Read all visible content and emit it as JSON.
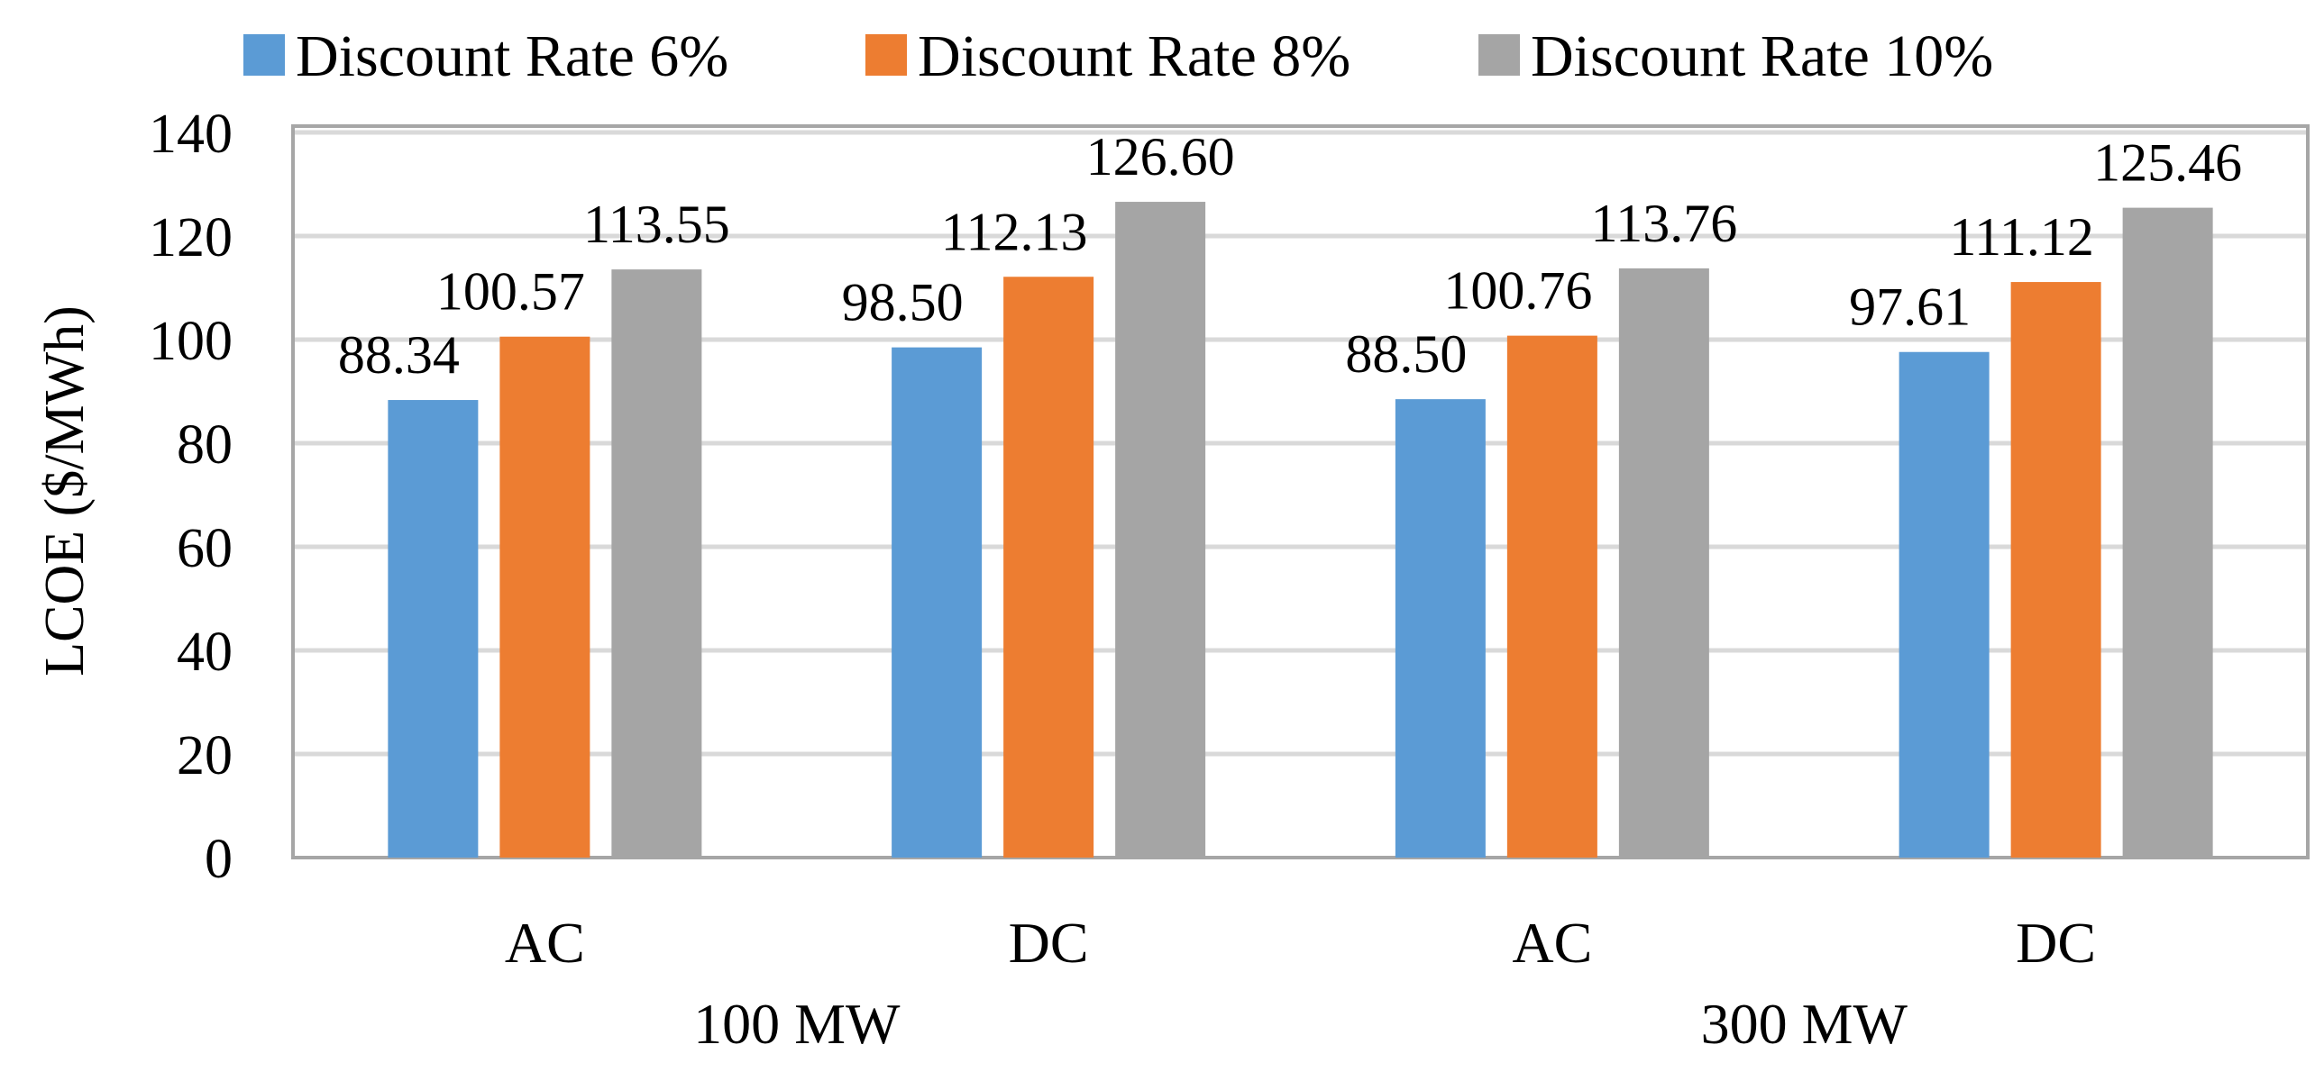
{
  "chart_data": {
    "type": "bar",
    "title": "",
    "xlabel": "",
    "ylabel": "LCOE  ($/MWh)",
    "ylim": [
      0,
      140
    ],
    "yticks": [
      0,
      20,
      40,
      60,
      80,
      100,
      120,
      140
    ],
    "grid": true,
    "legend_position": "top",
    "categories": [
      "AC",
      "DC",
      "AC",
      "DC"
    ],
    "groups": [
      {
        "label": "100 MW",
        "categories": [
          "AC",
          "DC"
        ]
      },
      {
        "label": "300 MW",
        "categories": [
          "AC",
          "DC"
        ]
      }
    ],
    "series": [
      {
        "name": "Discount Rate 6%",
        "color": "#5b9bd5",
        "values": [
          88.34,
          98.5,
          88.5,
          97.61
        ],
        "labels": [
          "88.34",
          "98.50",
          "88.50",
          "97.61"
        ]
      },
      {
        "name": "Discount Rate 8%",
        "color": "#ed7d31",
        "values": [
          100.57,
          112.13,
          100.76,
          111.12
        ],
        "labels": [
          "100.57",
          "112.13",
          "100.76",
          "111.12"
        ]
      },
      {
        "name": "Discount Rate 10%",
        "color": "#a5a5a5",
        "values": [
          113.55,
          126.6,
          113.76,
          125.46
        ],
        "labels": [
          "113.55",
          "126.60",
          "113.76",
          "125.46"
        ]
      }
    ]
  }
}
